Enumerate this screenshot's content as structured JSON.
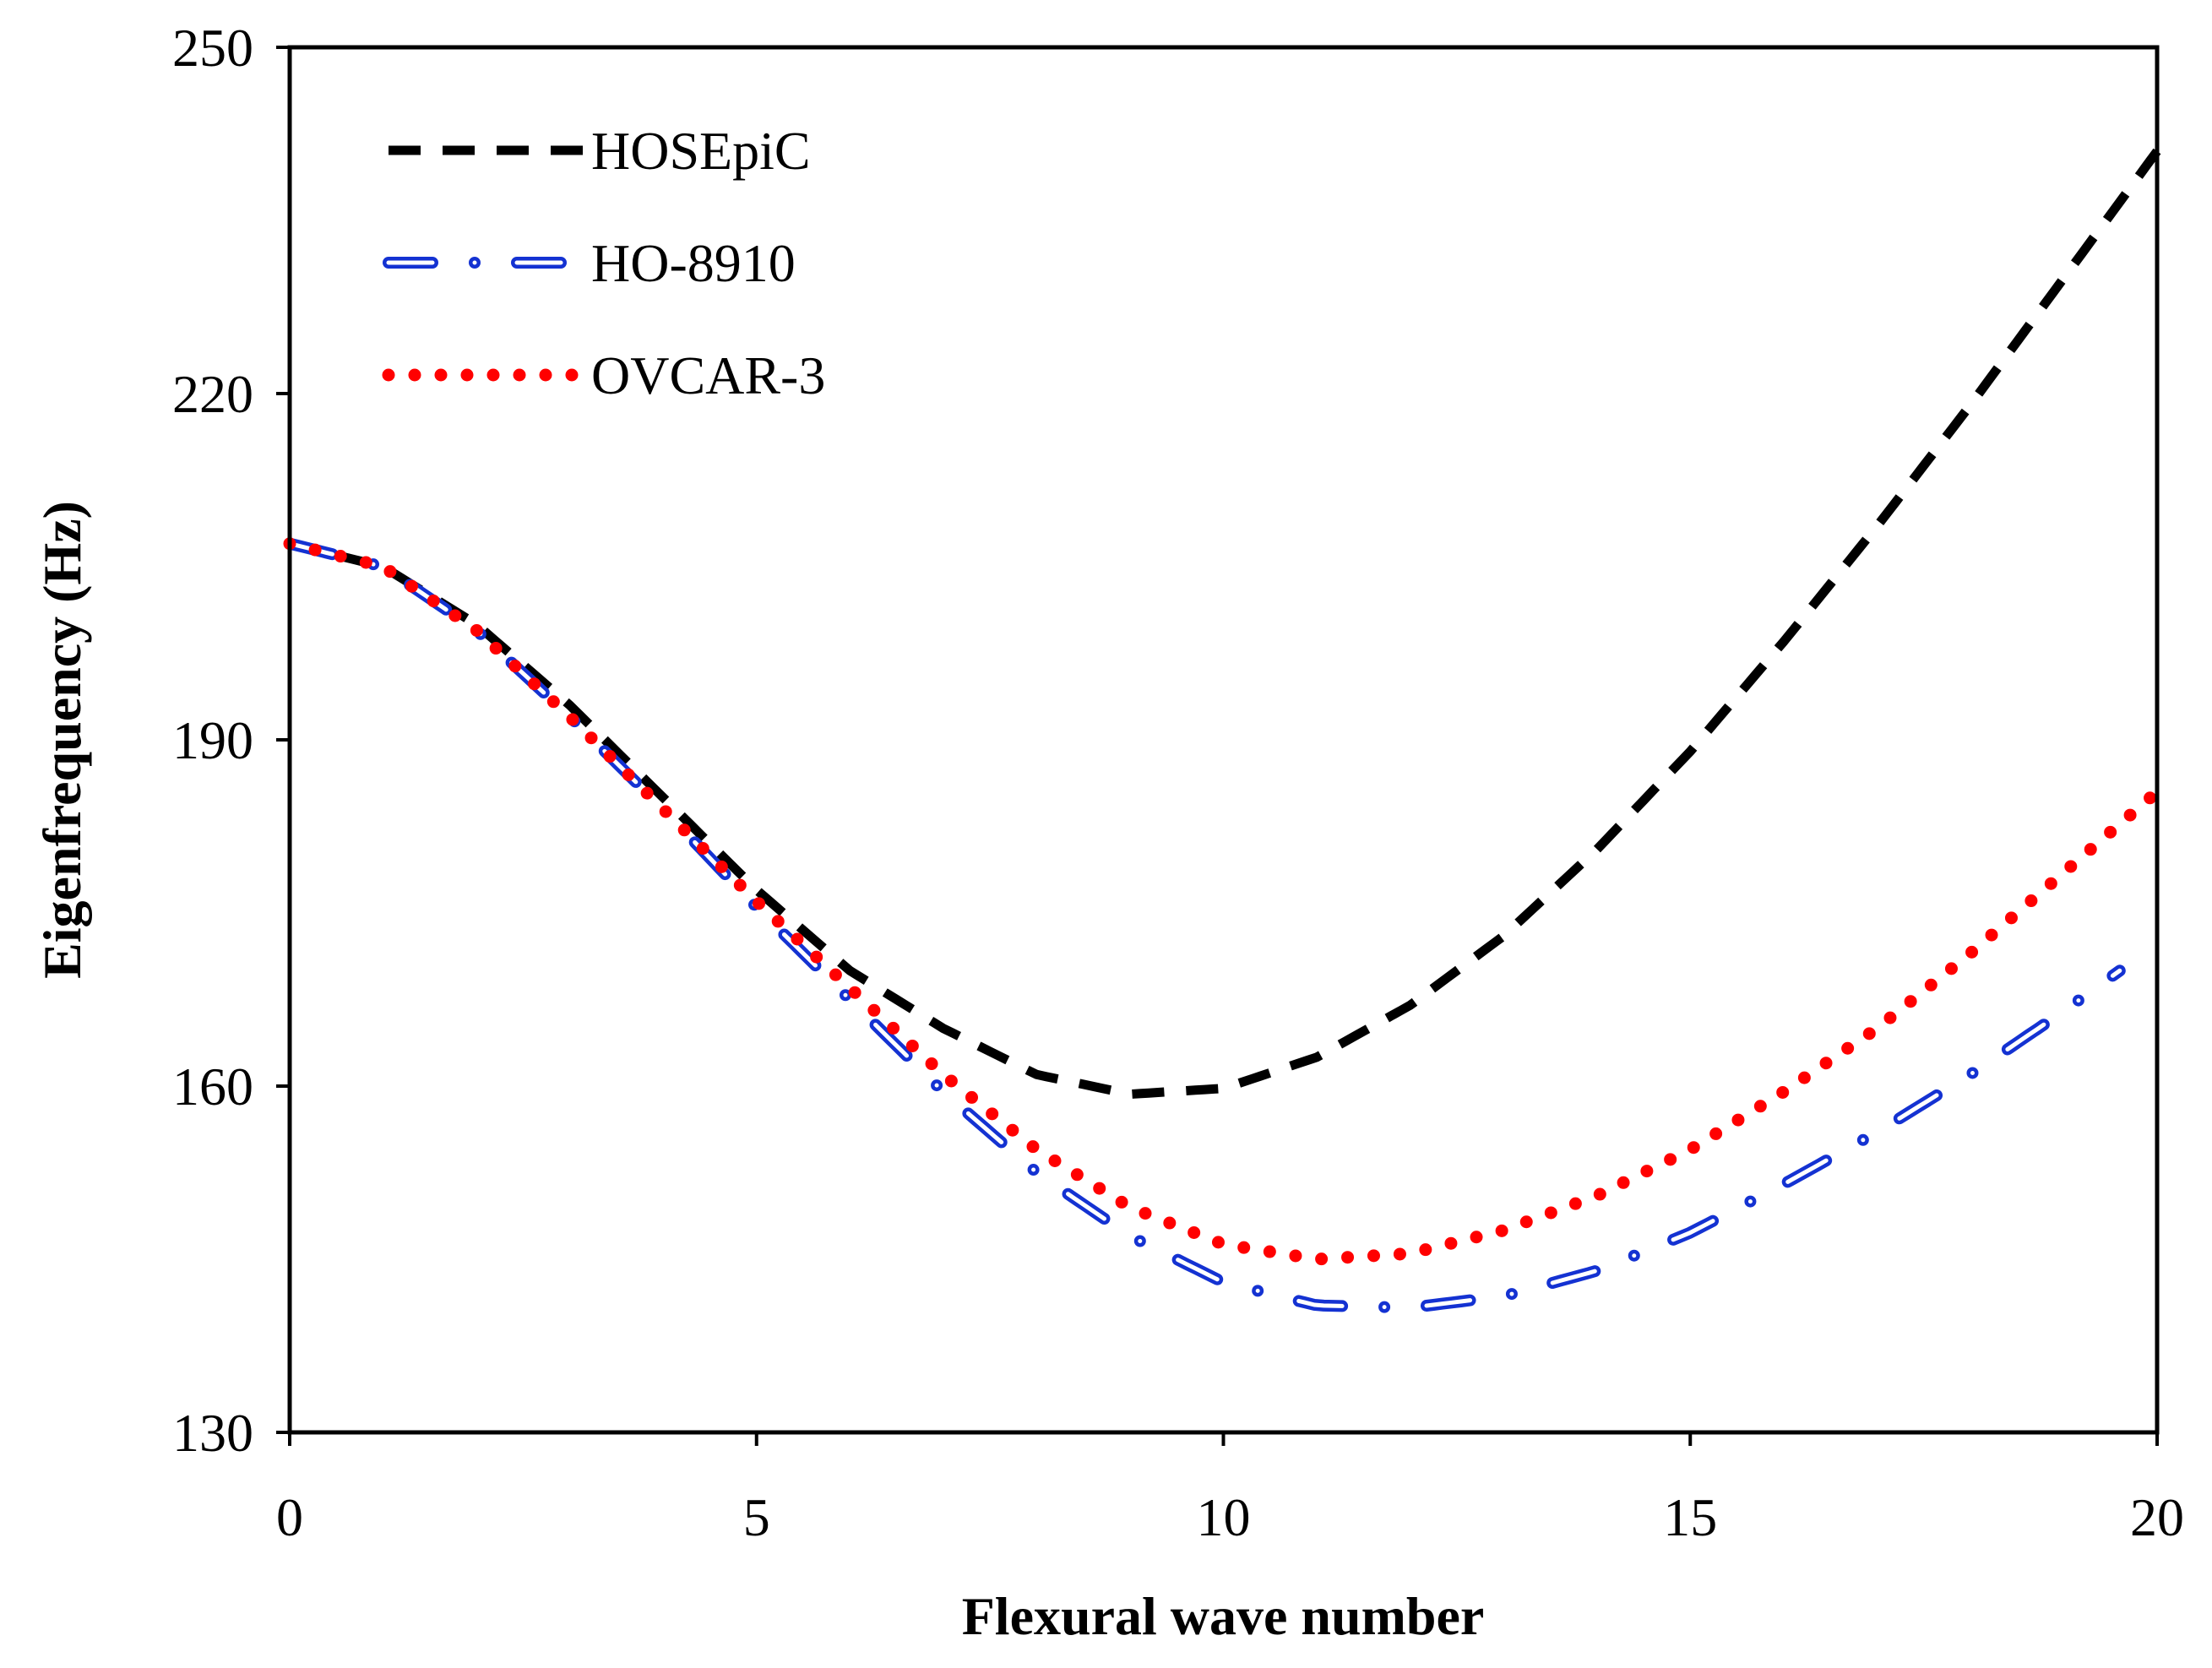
{
  "chart_data": {
    "type": "line",
    "title": "",
    "xlabel": "Flexural wave number",
    "ylabel": "Eigenfrequency (Hz)",
    "xlim": [
      0,
      20
    ],
    "ylim": [
      130,
      250
    ],
    "xticks": [
      0,
      5,
      10,
      15,
      20
    ],
    "yticks": [
      130,
      160,
      190,
      220,
      250
    ],
    "xtick_labels": [
      "0",
      "5",
      "10",
      "15",
      "20"
    ],
    "ytick_labels": [
      "130",
      "160",
      "190",
      "220",
      "250"
    ],
    "grid": false,
    "legend_position": "top-left",
    "series": [
      {
        "name": "HOSEpiC",
        "color": "#000000",
        "style": "dashed",
        "x": [
          0,
          1,
          2,
          3,
          4,
          5,
          6,
          7,
          8,
          9,
          10,
          11,
          12,
          13,
          14,
          15,
          16,
          17,
          18,
          19,
          20
        ],
        "y": [
          207,
          205,
          200,
          193,
          185,
          177,
          170,
          165,
          161,
          159.3,
          159.8,
          162.5,
          167,
          173,
          180.5,
          189,
          198.5,
          208.5,
          219,
          230,
          241
        ]
      },
      {
        "name": "HO-8910",
        "color": "#1432d2",
        "style": "dash-dot",
        "x": [
          0,
          1,
          2,
          3,
          4,
          5,
          6,
          7,
          8,
          9,
          10,
          11,
          12,
          13,
          14,
          15,
          16,
          17,
          18,
          19,
          19.6
        ],
        "y": [
          207,
          205,
          199.5,
          192,
          184,
          175.5,
          167.5,
          159.5,
          152.5,
          147,
          143,
          141,
          140.8,
          141.8,
          144,
          147.3,
          151.5,
          156,
          161,
          166.5,
          170
        ]
      },
      {
        "name": "OVCAR-3",
        "color": "#ff0000",
        "style": "dotted",
        "x": [
          0,
          1,
          2,
          3,
          4,
          5,
          6,
          7,
          8,
          9,
          10,
          11,
          12,
          13,
          14,
          15,
          16,
          17,
          18,
          19,
          20
        ],
        "y": [
          207,
          205,
          199.5,
          192,
          184,
          176,
          168.5,
          161,
          154.5,
          149.5,
          146.3,
          145,
          145.5,
          147.5,
          150.5,
          154.5,
          159.5,
          165,
          171.5,
          178.5,
          185.5
        ]
      }
    ]
  }
}
